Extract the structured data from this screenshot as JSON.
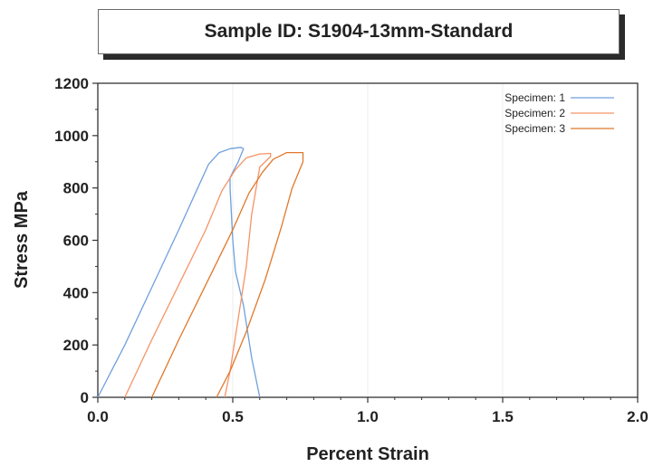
{
  "chart_data": {
    "type": "line",
    "title": "Sample ID: S1904-13mm-Standard",
    "xlabel": "Percent Strain",
    "ylabel": "Stress MPa",
    "xlim": [
      0.0,
      2.0
    ],
    "ylim": [
      0,
      1200
    ],
    "x_ticks": [
      "0.0",
      "0.5",
      "1.0",
      "1.5",
      "2.0"
    ],
    "y_ticks": [
      "0",
      "200",
      "400",
      "600",
      "800",
      "1000",
      "1200"
    ],
    "x_tick_values": [
      0.0,
      0.5,
      1.0,
      1.5,
      2.0
    ],
    "y_tick_values": [
      0,
      200,
      400,
      600,
      800,
      1000,
      1200
    ],
    "grid": true,
    "legend_position": "top-right",
    "series": [
      {
        "name": "Specimen: 1",
        "color": "#6fa0dd",
        "points": [
          [
            0.0,
            0
          ],
          [
            0.1,
            200
          ],
          [
            0.2,
            420
          ],
          [
            0.3,
            640
          ],
          [
            0.37,
            800
          ],
          [
            0.41,
            890
          ],
          [
            0.45,
            935
          ],
          [
            0.49,
            950
          ],
          [
            0.53,
            955
          ],
          [
            0.54,
            950
          ],
          [
            0.52,
            900
          ],
          [
            0.49,
            840
          ],
          [
            0.49,
            800
          ],
          [
            0.5,
            600
          ],
          [
            0.51,
            480
          ],
          [
            0.54,
            350
          ],
          [
            0.57,
            150
          ],
          [
            0.6,
            0
          ]
        ]
      },
      {
        "name": "Specimen: 2",
        "color": "#f59466",
        "points": [
          [
            0.1,
            0
          ],
          [
            0.2,
            220
          ],
          [
            0.3,
            430
          ],
          [
            0.4,
            640
          ],
          [
            0.46,
            790
          ],
          [
            0.51,
            870
          ],
          [
            0.55,
            915
          ],
          [
            0.6,
            930
          ],
          [
            0.64,
            932
          ],
          [
            0.64,
            920
          ],
          [
            0.6,
            880
          ],
          [
            0.57,
            700
          ],
          [
            0.55,
            500
          ],
          [
            0.52,
            300
          ],
          [
            0.49,
            100
          ],
          [
            0.47,
            0
          ]
        ]
      },
      {
        "name": "Specimen: 3",
        "color": "#e0782a",
        "points": [
          [
            0.2,
            0
          ],
          [
            0.3,
            220
          ],
          [
            0.4,
            430
          ],
          [
            0.5,
            640
          ],
          [
            0.56,
            780
          ],
          [
            0.61,
            860
          ],
          [
            0.65,
            910
          ],
          [
            0.7,
            935
          ],
          [
            0.76,
            935
          ],
          [
            0.76,
            900
          ],
          [
            0.72,
            800
          ],
          [
            0.68,
            650
          ],
          [
            0.62,
            450
          ],
          [
            0.55,
            250
          ],
          [
            0.49,
            100
          ],
          [
            0.44,
            0
          ]
        ]
      }
    ]
  }
}
